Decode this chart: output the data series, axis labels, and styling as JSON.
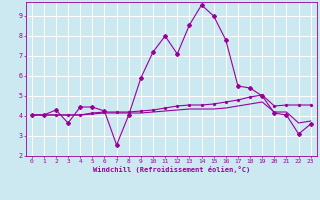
{
  "xlabel": "Windchill (Refroidissement éolien,°C)",
  "bg_color": "#cce8f0",
  "grid_color": "#ffffff",
  "line_color": "#990099",
  "xlim": [
    -0.5,
    23.5
  ],
  "ylim": [
    2.0,
    9.7
  ],
  "xticks": [
    0,
    1,
    2,
    3,
    4,
    5,
    6,
    7,
    8,
    9,
    10,
    11,
    12,
    13,
    14,
    15,
    16,
    17,
    18,
    19,
    20,
    21,
    22,
    23
  ],
  "yticks": [
    2,
    3,
    4,
    5,
    6,
    7,
    8,
    9
  ],
  "line1_x": [
    0,
    1,
    2,
    3,
    4,
    5,
    6,
    7,
    8,
    9,
    10,
    11,
    12,
    13,
    14,
    15,
    16,
    17,
    18,
    19,
    20,
    21,
    22,
    23
  ],
  "line1_y": [
    4.05,
    4.05,
    4.3,
    3.65,
    4.45,
    4.45,
    4.25,
    2.55,
    4.05,
    5.9,
    7.2,
    8.0,
    7.1,
    8.55,
    9.55,
    9.0,
    7.8,
    5.5,
    5.4,
    5.0,
    4.15,
    4.05,
    3.1,
    3.6
  ],
  "line2_x": [
    0,
    1,
    2,
    3,
    4,
    5,
    6,
    7,
    8,
    9,
    10,
    11,
    12,
    13,
    14,
    15,
    16,
    17,
    18,
    19,
    20,
    21,
    22,
    23
  ],
  "line2_y": [
    4.05,
    4.05,
    4.05,
    4.05,
    4.05,
    4.15,
    4.2,
    4.2,
    4.2,
    4.25,
    4.3,
    4.4,
    4.5,
    4.55,
    4.55,
    4.6,
    4.7,
    4.8,
    4.95,
    5.05,
    4.5,
    4.55,
    4.55,
    4.55
  ],
  "line3_x": [
    0,
    1,
    2,
    3,
    4,
    5,
    6,
    7,
    8,
    9,
    10,
    11,
    12,
    13,
    14,
    15,
    16,
    17,
    18,
    19,
    20,
    21,
    22,
    23
  ],
  "line3_y": [
    4.05,
    4.05,
    4.05,
    4.05,
    4.05,
    4.1,
    4.15,
    4.15,
    4.15,
    4.15,
    4.2,
    4.25,
    4.3,
    4.35,
    4.35,
    4.35,
    4.4,
    4.5,
    4.6,
    4.7,
    4.2,
    4.2,
    3.65,
    3.75
  ]
}
